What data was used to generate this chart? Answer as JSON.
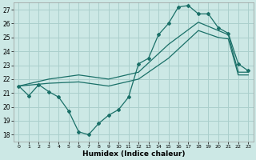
{
  "xlabel": "Humidex (Indice chaleur)",
  "xlim": [
    -0.5,
    23.5
  ],
  "ylim": [
    17.5,
    27.5
  ],
  "xticks": [
    0,
    1,
    2,
    3,
    4,
    5,
    6,
    7,
    8,
    9,
    10,
    11,
    12,
    13,
    14,
    15,
    16,
    17,
    18,
    19,
    20,
    21,
    22,
    23
  ],
  "yticks": [
    18,
    19,
    20,
    21,
    22,
    23,
    24,
    25,
    26,
    27
  ],
  "background_color": "#cce8e5",
  "grid_color": "#aacfcc",
  "line_color": "#1a7068",
  "line1_x": [
    0,
    1,
    2,
    3,
    4,
    5,
    6,
    7,
    8,
    9,
    10,
    11,
    12,
    13,
    14,
    15,
    16,
    17,
    18,
    19,
    20,
    21,
    22,
    23
  ],
  "line1_y": [
    21.5,
    20.8,
    21.6,
    21.1,
    20.7,
    19.7,
    18.2,
    18.0,
    18.8,
    19.4,
    19.8,
    20.7,
    23.1,
    23.5,
    25.2,
    26.0,
    27.2,
    27.3,
    26.7,
    26.7,
    25.7,
    25.3,
    23.1,
    22.6
  ],
  "line2_x": [
    0,
    3,
    6,
    9,
    12,
    15,
    18,
    20,
    21,
    22,
    23
  ],
  "line2_y": [
    21.5,
    22.0,
    22.3,
    22.0,
    22.5,
    24.5,
    26.1,
    25.5,
    25.2,
    22.5,
    22.5
  ],
  "line3_x": [
    0,
    3,
    6,
    9,
    12,
    15,
    18,
    20,
    21,
    22,
    23
  ],
  "line3_y": [
    21.5,
    21.7,
    21.8,
    21.5,
    22.0,
    23.5,
    25.5,
    25.0,
    24.9,
    22.3,
    22.3
  ]
}
